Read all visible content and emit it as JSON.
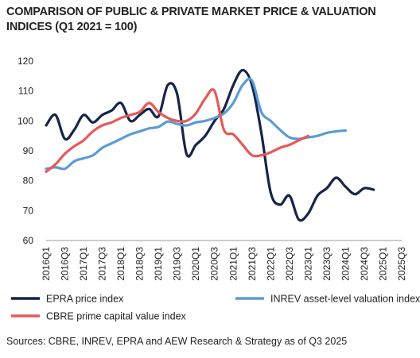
{
  "chart_data": {
    "type": "line",
    "title": "COMPARISON OF PUBLIC & PRIVATE MARKET PRICE & VALUATION INDICES (Q1 2021 = 100)",
    "xlabel": "",
    "ylabel": "",
    "ylim": [
      60,
      120
    ],
    "yticks": [
      60,
      70,
      80,
      90,
      100,
      110,
      120
    ],
    "grid": false,
    "legend_position": "bottom",
    "x": [
      "2016Q1",
      "2016Q2",
      "2016Q3",
      "2016Q4",
      "2017Q1",
      "2017Q2",
      "2017Q3",
      "2017Q4",
      "2018Q1",
      "2018Q2",
      "2018Q3",
      "2018Q4",
      "2019Q1",
      "2019Q2",
      "2019Q3",
      "2019Q4",
      "2020Q1",
      "2020Q2",
      "2020Q3",
      "2020Q4",
      "2021Q1",
      "2021Q2",
      "2021Q3",
      "2021Q4",
      "2022Q1",
      "2022Q2",
      "2022Q3",
      "2022Q4",
      "2023Q1",
      "2023Q2",
      "2023Q3",
      "2023Q4",
      "2024Q1",
      "2024Q2",
      "2024Q3",
      "2024Q4",
      "2025Q1",
      "2025Q2",
      "2025Q3"
    ],
    "xtick_labels": [
      "2016Q1",
      "2016Q3",
      "2017Q1",
      "2017Q3",
      "2018Q1",
      "2018Q3",
      "2019Q1",
      "2019Q3",
      "2020Q1",
      "2020Q3",
      "2021Q1",
      "2021Q3",
      "2022Q1",
      "2022Q3",
      "2023Q1",
      "2023Q3",
      "2024Q1",
      "2024Q3",
      "2025Q1",
      "2025Q3"
    ],
    "series": [
      {
        "name": "EPRA price index",
        "color": "#16244a",
        "values": [
          98.5,
          102.0,
          94.0,
          97.0,
          102.0,
          99.5,
          102.0,
          103.5,
          106.0,
          100.0,
          102.0,
          104.0,
          101.5,
          112.0,
          109.0,
          89.0,
          92.0,
          95.0,
          100.0,
          104.0,
          112.0,
          117.0,
          112.0,
          96.0,
          76.0,
          72.0,
          75.0,
          67.0,
          69.0,
          75.0,
          77.5,
          81.0,
          78.0,
          75.5,
          77.5,
          77.0,
          null,
          null,
          null
        ],
        "x_start_index": 0
      },
      {
        "name": "INREV  asset-level valuation index",
        "color": "#5b9bd5",
        "values": [
          84.0,
          84.5,
          84.0,
          86.5,
          87.5,
          88.5,
          91.0,
          92.5,
          94.0,
          95.5,
          96.5,
          97.5,
          98.0,
          99.8,
          99.0,
          98.5,
          99.5,
          100.0,
          101.0,
          102.5,
          106.0,
          112.0,
          113.5,
          103.0,
          100.0,
          97.0,
          94.5,
          94.0,
          94.5,
          95.0,
          96.0,
          96.5,
          96.8,
          null,
          null,
          null,
          null,
          null,
          null
        ],
        "x_start_index": 0
      },
      {
        "name": "CBRE prime capital value index",
        "color": "#e8585a",
        "values": [
          83.0,
          85.5,
          89.0,
          91.5,
          93.5,
          96.5,
          98.5,
          99.5,
          101.0,
          102.0,
          103.0,
          106.0,
          103.0,
          101.0,
          100.0,
          100.0,
          102.5,
          107.5,
          110.0,
          97.0,
          95.5,
          92.0,
          88.5,
          88.5,
          89.5,
          91.0,
          92.0,
          93.5,
          95.0,
          null,
          null,
          null,
          null,
          null,
          null,
          null,
          null,
          null,
          null
        ],
        "x_start_index": 0
      }
    ]
  },
  "source_note": "Sources: CBRE, INREV, EPRA and AEW Research & Strategy as of Q3 2025"
}
